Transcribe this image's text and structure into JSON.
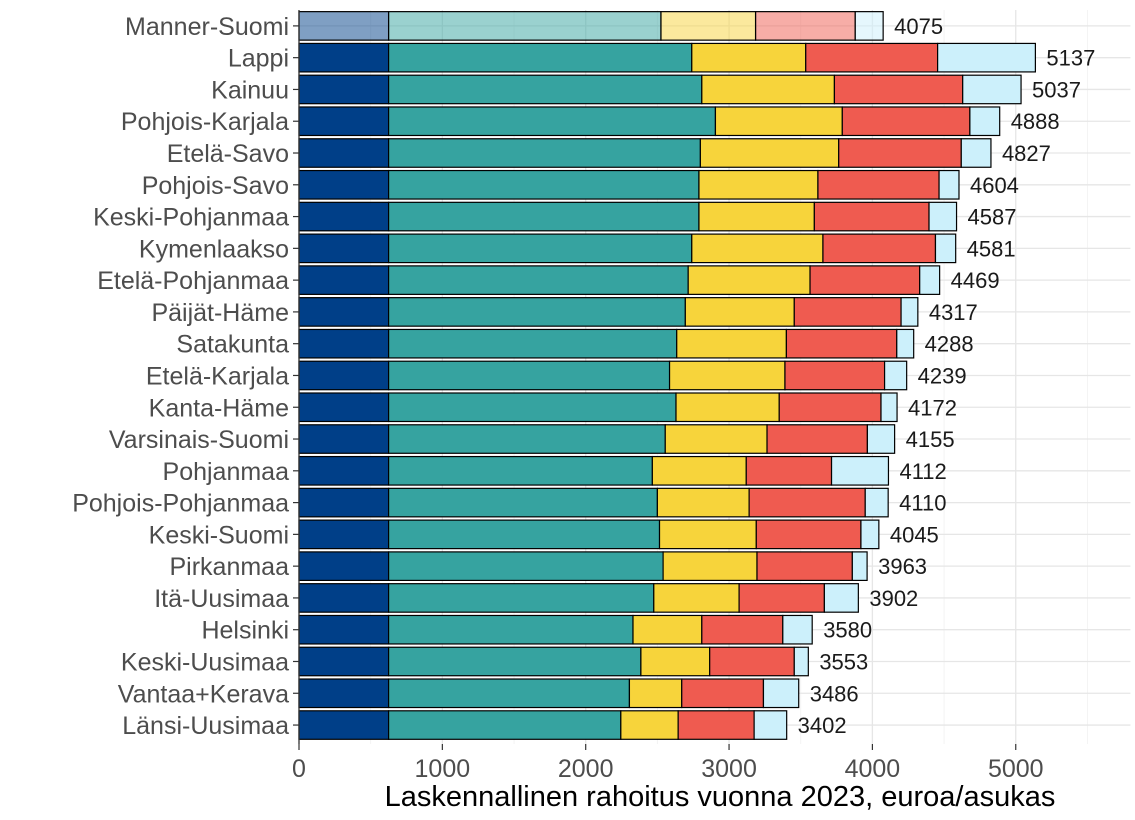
{
  "chart_data": {
    "type": "bar",
    "orientation": "horizontal",
    "stacked": true,
    "title": "",
    "xlabel": "Laskennallinen rahoitus vuonna 2023, euroa/asukas",
    "ylabel": "",
    "xlim": [
      0,
      5800
    ],
    "xticks": [
      0,
      1000,
      2000,
      3000,
      4000,
      5000
    ],
    "grid": true,
    "legend": "none",
    "highlight_category": "Manner-Suomi",
    "highlight_opacity": 0.5,
    "categories": [
      "Manner-Suomi",
      "Lappi",
      "Kainuu",
      "Pohjois-Karjala",
      "Etelä-Savo",
      "Pohjois-Savo",
      "Keski-Pohjanmaa",
      "Kymenlaakso",
      "Etelä-Pohjanmaa",
      "Päijät-Häme",
      "Satakunta",
      "Etelä-Karjala",
      "Kanta-Häme",
      "Varsinais-Suomi",
      "Pohjanmaa",
      "Pohjois-Pohjanmaa",
      "Keski-Suomi",
      "Pirkanmaa",
      "Itä-Uusimaa",
      "Helsinki",
      "Keski-Uusimaa",
      "Vantaa+Kerava",
      "Länsi-Uusimaa"
    ],
    "totals": [
      4075,
      5137,
      5037,
      4888,
      4827,
      4604,
      4587,
      4581,
      4469,
      4317,
      4288,
      4239,
      4172,
      4155,
      4112,
      4110,
      4045,
      3963,
      3902,
      3580,
      3553,
      3486,
      3402
    ],
    "series": [
      {
        "color": "#003f88",
        "values": [
          625,
          625,
          625,
          625,
          625,
          625,
          625,
          625,
          625,
          625,
          625,
          625,
          625,
          625,
          625,
          625,
          625,
          625,
          625,
          625,
          625,
          625,
          625
        ]
      },
      {
        "color": "#36a3a0",
        "values": [
          1900,
          2115,
          2185,
          2280,
          2175,
          2165,
          2165,
          2115,
          2090,
          2070,
          2010,
          1960,
          2005,
          1930,
          1840,
          1875,
          1890,
          1915,
          1850,
          1705,
          1760,
          1680,
          1620
        ]
      },
      {
        "color": "#f7d43b",
        "values": [
          660,
          795,
          925,
          885,
          965,
          830,
          805,
          915,
          850,
          760,
          765,
          805,
          720,
          710,
          655,
          640,
          675,
          655,
          595,
          480,
          480,
          365,
          400
        ]
      },
      {
        "color": "#ef5b50",
        "values": [
          695,
          920,
          895,
          890,
          855,
          845,
          800,
          785,
          765,
          745,
          770,
          695,
          710,
          700,
          595,
          810,
          730,
          665,
          595,
          565,
          590,
          570,
          530
        ]
      },
      {
        "color": "#ccf0fb",
        "values": [
          195,
          682,
          407,
          208,
          207,
          139,
          192,
          141,
          139,
          117,
          118,
          154,
          112,
          190,
          397,
          160,
          125,
          103,
          237,
          205,
          98,
          246,
          227
        ]
      }
    ]
  }
}
